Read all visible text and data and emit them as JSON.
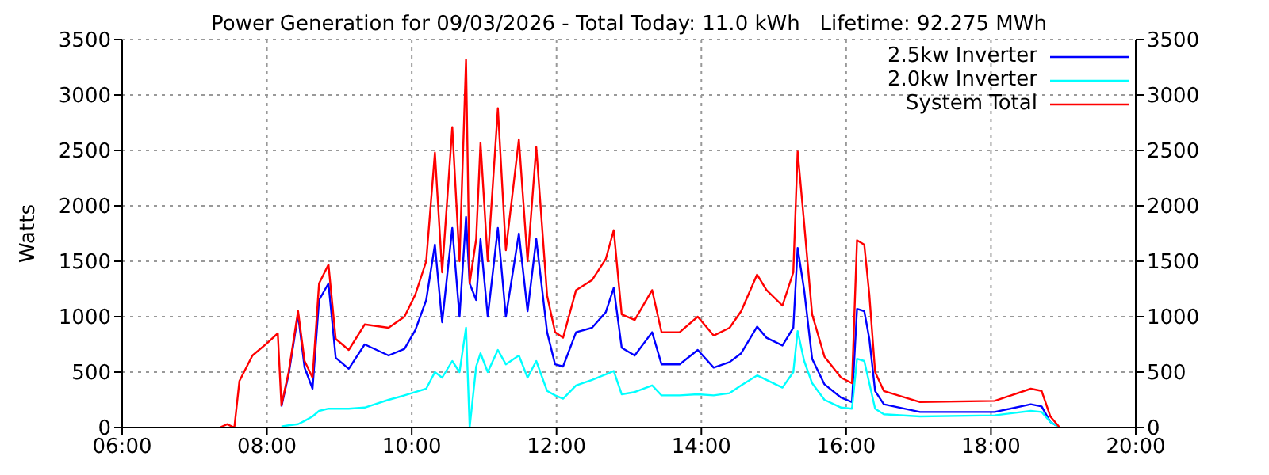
{
  "chart_data": {
    "type": "line",
    "title": "Power Generation for 09/03/2026 - Total Today: 11.0 kWh   Lifetime: 92.275 MWh",
    "ylabel": "Watts",
    "x": [
      7.35,
      7.45,
      7.55,
      7.62,
      7.8,
      8.0,
      8.15,
      8.2,
      8.3,
      8.43,
      8.52,
      8.63,
      8.72,
      8.85,
      8.95,
      9.13,
      9.35,
      9.68,
      9.9,
      10.05,
      10.2,
      10.32,
      10.42,
      10.56,
      10.66,
      10.75,
      10.8,
      10.89,
      10.95,
      11.05,
      11.19,
      11.3,
      11.48,
      11.6,
      11.72,
      11.87,
      11.98,
      12.09,
      12.27,
      12.49,
      12.68,
      12.79,
      12.9,
      13.08,
      13.32,
      13.45,
      13.7,
      13.95,
      14.17,
      14.39,
      14.55,
      14.77,
      14.9,
      15.12,
      15.27,
      15.33,
      15.42,
      15.53,
      15.7,
      15.93,
      16.08,
      16.15,
      16.25,
      16.32,
      16.4,
      16.52,
      17.02,
      18.05,
      18.55,
      18.7,
      18.82,
      18.95
    ],
    "series": [
      {
        "name": "2.5kw Inverter",
        "color": "#0000ff",
        "values": [
          null,
          null,
          null,
          null,
          null,
          null,
          null,
          190,
          480,
          1020,
          540,
          350,
          1150,
          1300,
          630,
          530,
          750,
          650,
          710,
          880,
          1150,
          1650,
          950,
          1800,
          1000,
          1900,
          1300,
          1150,
          1700,
          1000,
          1800,
          1000,
          1750,
          1050,
          1700,
          860,
          570,
          550,
          860,
          900,
          1040,
          1260,
          720,
          650,
          860,
          570,
          570,
          700,
          540,
          590,
          670,
          910,
          810,
          740,
          900,
          1620,
          1240,
          620,
          390,
          270,
          230,
          1070,
          1050,
          800,
          330,
          210,
          140,
          140,
          210,
          190,
          50,
          0
        ]
      },
      {
        "name": "2.0kw Inverter",
        "color": "#00ffff",
        "values": [
          null,
          null,
          null,
          null,
          null,
          null,
          null,
          10,
          20,
          30,
          60,
          100,
          150,
          170,
          170,
          170,
          180,
          250,
          290,
          320,
          350,
          500,
          450,
          600,
          500,
          900,
          0,
          550,
          670,
          500,
          700,
          570,
          650,
          450,
          600,
          330,
          290,
          260,
          380,
          430,
          480,
          510,
          300,
          320,
          380,
          290,
          290,
          300,
          290,
          310,
          380,
          470,
          430,
          360,
          500,
          870,
          600,
          400,
          250,
          180,
          170,
          620,
          600,
          400,
          170,
          120,
          100,
          110,
          150,
          140,
          50,
          0
        ]
      },
      {
        "name": "System Total",
        "color": "#ff0000",
        "values": [
          0,
          30,
          0,
          420,
          650,
          760,
          850,
          200,
          500,
          1050,
          600,
          450,
          1300,
          1470,
          800,
          700,
          930,
          900,
          1000,
          1200,
          1500,
          2480,
          1400,
          2710,
          1500,
          3320,
          1300,
          1700,
          2570,
          1500,
          2880,
          1600,
          2600,
          1500,
          2530,
          1190,
          860,
          810,
          1240,
          1330,
          1520,
          1780,
          1020,
          970,
          1240,
          860,
          860,
          1000,
          830,
          900,
          1050,
          1380,
          1240,
          1100,
          1400,
          2490,
          1840,
          1020,
          640,
          450,
          400,
          1690,
          1650,
          1200,
          500,
          330,
          230,
          240,
          350,
          330,
          100,
          0
        ]
      }
    ],
    "xlim": [
      6,
      20
    ],
    "xticks": [
      {
        "value": 6,
        "label": "06:00"
      },
      {
        "value": 8,
        "label": "08:00"
      },
      {
        "value": 10,
        "label": "10:00"
      },
      {
        "value": 12,
        "label": "12:00"
      },
      {
        "value": 14,
        "label": "14:00"
      },
      {
        "value": 16,
        "label": "16:00"
      },
      {
        "value": 18,
        "label": "18:00"
      },
      {
        "value": 20,
        "label": "20:00"
      }
    ],
    "ylim": [
      0,
      3500
    ],
    "yticks": [
      0,
      500,
      1000,
      1500,
      2000,
      2500,
      3000,
      3500
    ],
    "y2lim": [
      0,
      3500
    ],
    "y2ticks": [
      0,
      500,
      1000,
      1500,
      2000,
      2500,
      3000,
      3500
    ],
    "grid": true,
    "legend": "top right",
    "marker": "none",
    "line_style": "solid"
  }
}
